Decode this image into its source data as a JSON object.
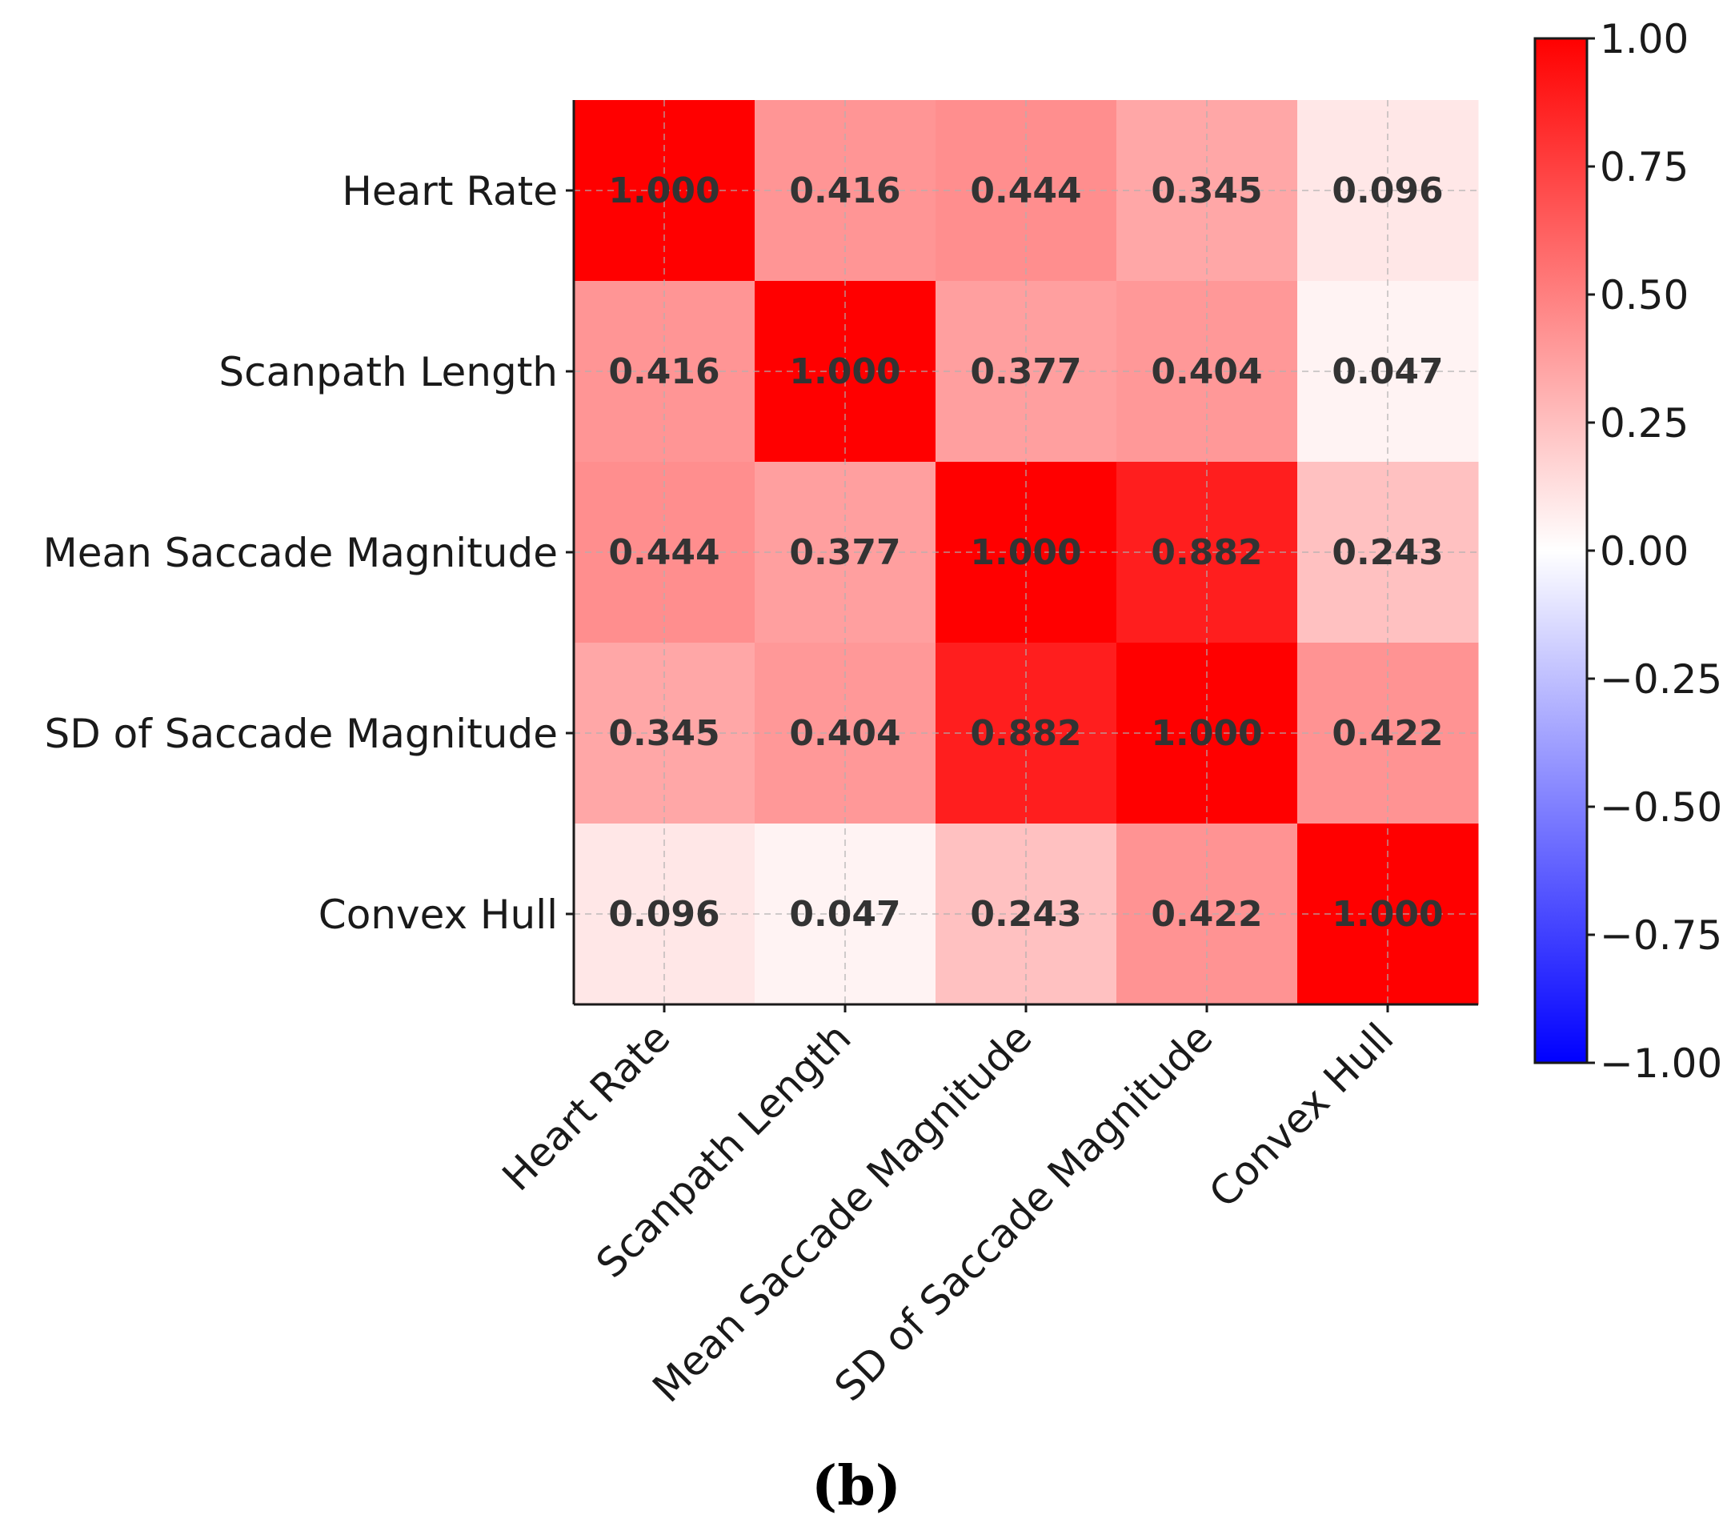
{
  "chart_data": {
    "type": "heatmap",
    "title": "",
    "rows": [
      "Heart Rate",
      "Scanpath Length",
      "Mean Saccade Magnitude",
      "SD of Saccade Magnitude",
      "Convex Hull"
    ],
    "columns": [
      "Heart Rate",
      "Scanpath Length",
      "Mean Saccade Magnitude",
      "SD of Saccade Magnitude",
      "Convex Hull"
    ],
    "values": [
      [
        1.0,
        0.416,
        0.444,
        0.345,
        0.096
      ],
      [
        0.416,
        1.0,
        0.377,
        0.404,
        0.047
      ],
      [
        0.444,
        0.377,
        1.0,
        0.882,
        0.243
      ],
      [
        0.345,
        0.404,
        0.882,
        1.0,
        0.422
      ],
      [
        0.096,
        0.047,
        0.243,
        0.422,
        1.0
      ]
    ],
    "cell_labels": [
      [
        "1.000",
        "0.416",
        "0.444",
        "0.345",
        "0.096"
      ],
      [
        "0.416",
        "1.000",
        "0.377",
        "0.404",
        "0.047"
      ],
      [
        "0.444",
        "0.377",
        "1.000",
        "0.882",
        "0.243"
      ],
      [
        "0.345",
        "0.404",
        "0.882",
        "1.000",
        "0.422"
      ],
      [
        "0.096",
        "0.047",
        "0.243",
        "0.422",
        "1.000"
      ]
    ],
    "colormap": "bwr",
    "vmin": -1.0,
    "vmax": 1.0,
    "colorbar_ticks": [
      1.0,
      0.75,
      0.5,
      0.25,
      0.0,
      -0.25,
      -0.5,
      -0.75,
      -1.0
    ],
    "colorbar_tick_labels": [
      "1.00",
      "0.75",
      "0.50",
      "0.25",
      "0.00",
      "−0.25",
      "−0.50",
      "−0.75",
      "−1.00"
    ],
    "grid": true,
    "xlabel": "",
    "ylabel": ""
  },
  "caption": "(b)",
  "colors": {
    "high": "#ff0000",
    "mid": "#ffffff",
    "low": "#0000ff",
    "cell_text": "#333333",
    "axis": "#1a1a1a"
  }
}
